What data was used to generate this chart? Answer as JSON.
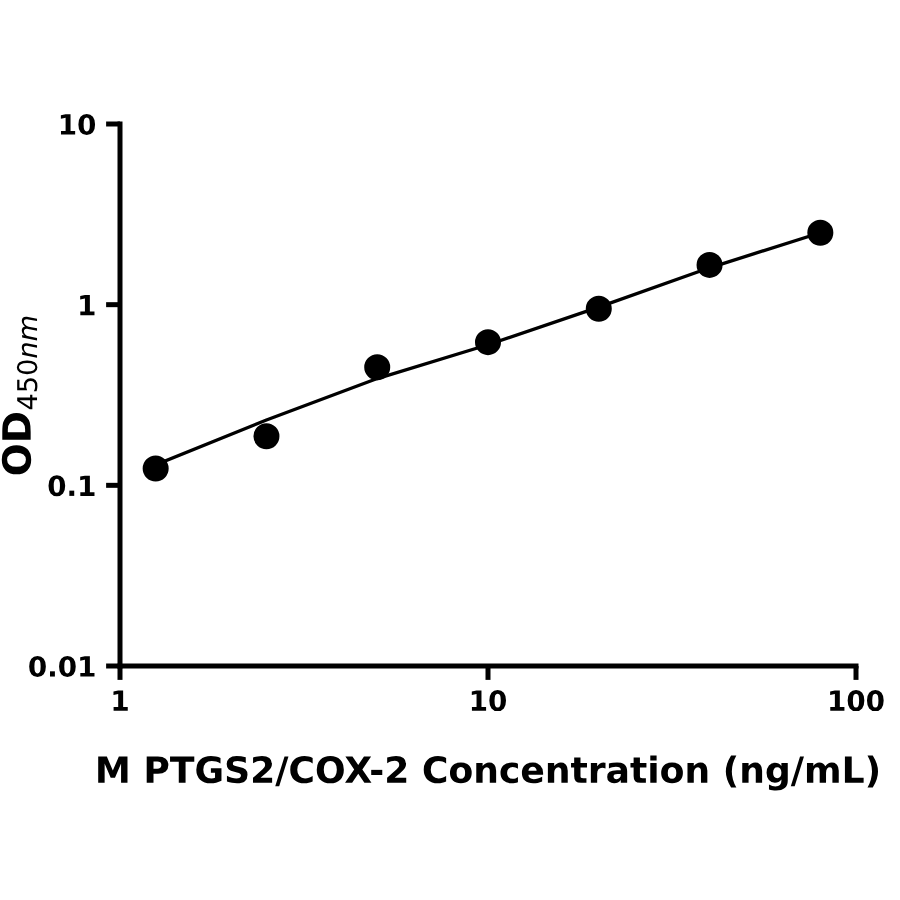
{
  "chart_data": {
    "type": "scatter",
    "xlabel": "M PTGS2/COX-2 Concentration (ng/mL)",
    "ylabel": "OD$_{450nm}$",
    "log": "xy",
    "xlim": [
      1,
      100
    ],
    "xticks": [
      1,
      10,
      100
    ],
    "ylim": [
      0.01,
      10
    ],
    "yticks": [
      0.01,
      0.1,
      1,
      10
    ],
    "grid": false,
    "series": [
      {
        "color": "#000000",
        "marker": "circle",
        "x": [
          1.25,
          2.5,
          5,
          10,
          20,
          40,
          80
        ],
        "values": [
          0.124,
          0.187,
          0.45,
          0.62,
          0.95,
          1.66,
          2.5
        ]
      },
      {
        "type": "line",
        "color": "#000000",
        "line_style": "solid",
        "marker": "none",
        "x": [
          1.25,
          2.5,
          5,
          10,
          20,
          40,
          80
        ],
        "values": [
          0.13,
          0.23,
          0.39,
          0.6,
          0.97,
          1.6,
          2.5
        ]
      }
    ]
  }
}
